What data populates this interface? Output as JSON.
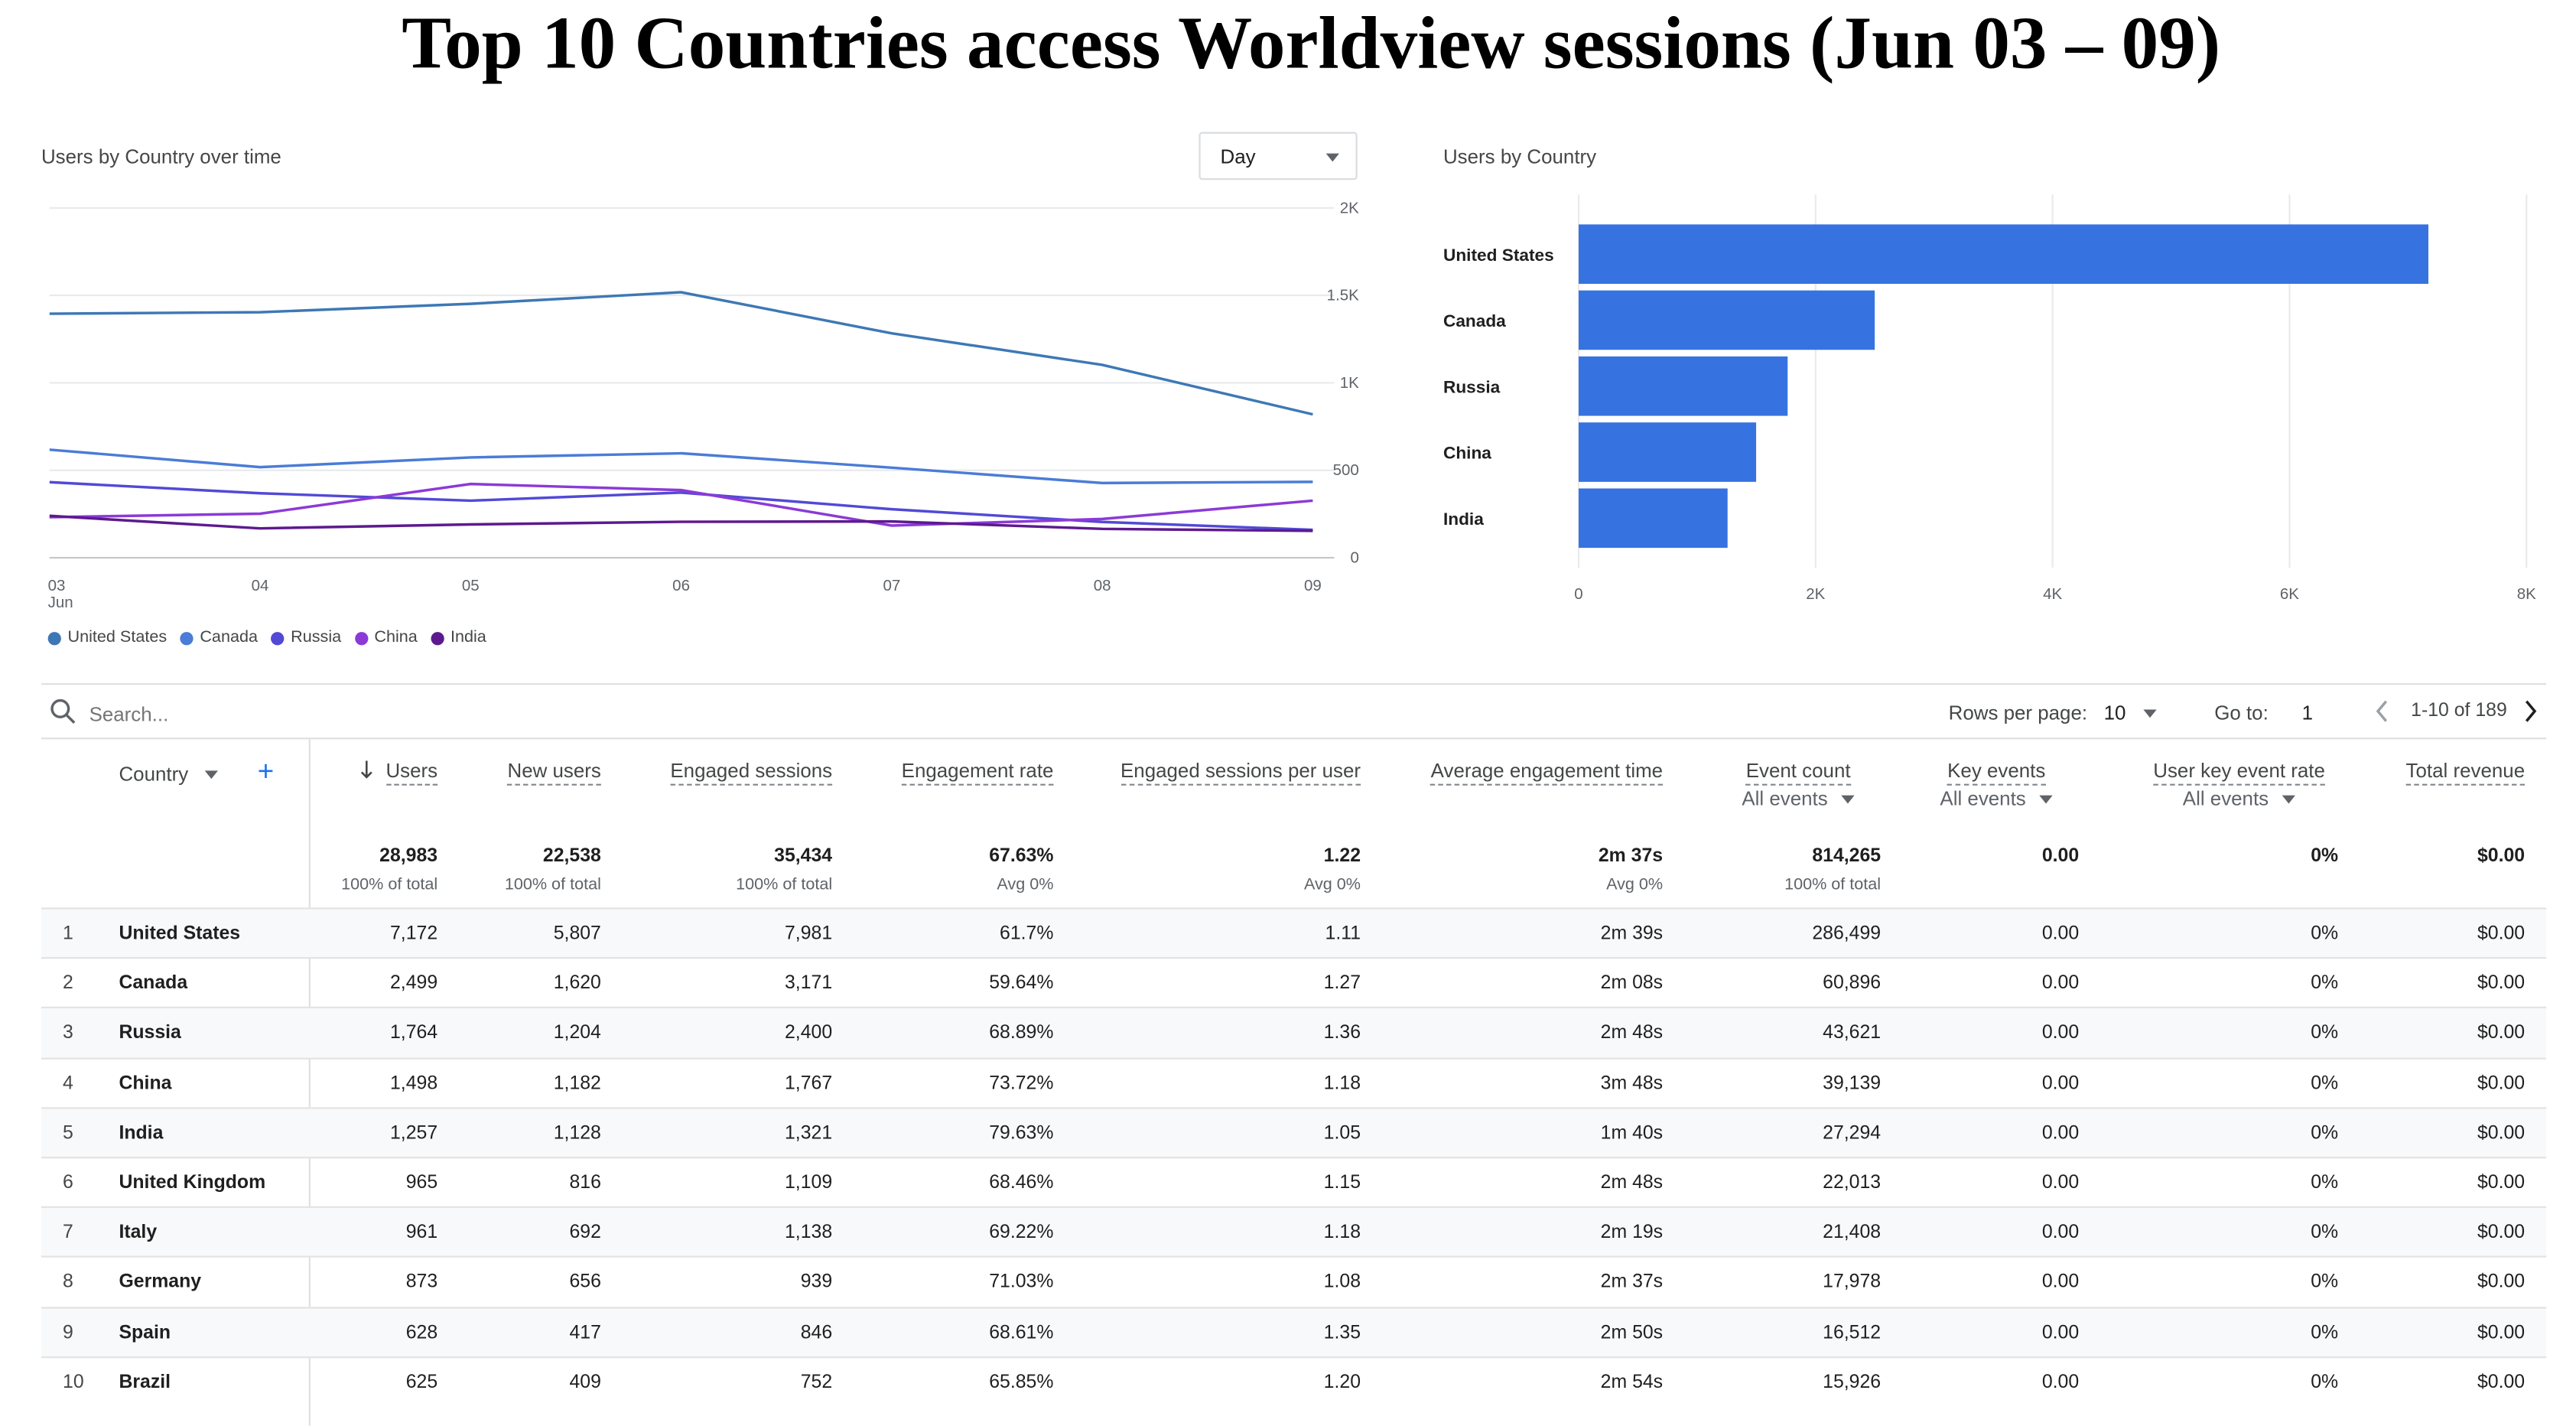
{
  "page_title": "Top 10 Countries access Worldview sessions (Jun 03 – 09)",
  "line_card": {
    "title": "Users by Country over time",
    "granularity": "Day",
    "chart_data": {
      "type": "line",
      "x": [
        "03",
        "04",
        "05",
        "06",
        "07",
        "08",
        "09"
      ],
      "x_sublabel_first": "Jun",
      "y_ticks": [
        "0",
        "500",
        "1K",
        "1.5K",
        "2K"
      ],
      "ylim": [
        0,
        2000
      ],
      "grid": true,
      "legend_position": "bottom-left",
      "series": [
        {
          "name": "United States",
          "color": "#3d78b5",
          "values": [
            1395,
            1404,
            1452,
            1518,
            1283,
            1103,
            820
          ]
        },
        {
          "name": "Canada",
          "color": "#4a7cd8",
          "values": [
            618,
            518,
            574,
            597,
            515,
            427,
            434
          ]
        },
        {
          "name": "Russia",
          "color": "#5249d6",
          "values": [
            432,
            369,
            326,
            373,
            277,
            205,
            159
          ]
        },
        {
          "name": "China",
          "color": "#8b3ad7",
          "values": [
            232,
            252,
            422,
            387,
            184,
            222,
            326
          ]
        },
        {
          "name": "India",
          "color": "#5d1a8e",
          "values": [
            240,
            168,
            191,
            206,
            208,
            165,
            154
          ]
        }
      ]
    }
  },
  "bar_card": {
    "title": "Users by Country",
    "chart_data": {
      "type": "bar",
      "orientation": "horizontal",
      "categories": [
        "United States",
        "Canada",
        "Russia",
        "China",
        "India"
      ],
      "values": [
        7172,
        2499,
        1764,
        1498,
        1257
      ],
      "x_ticks": [
        "0",
        "2K",
        "4K",
        "6K",
        "8K"
      ],
      "xlim": [
        0,
        8000
      ],
      "grid": true,
      "color": "#3673e0"
    }
  },
  "toolbar": {
    "search_placeholder": "Search...",
    "rows_per_page_label": "Rows per page:",
    "rows_per_page_value": "10",
    "goto_label": "Go to:",
    "goto_value": "1",
    "range": "1-10 of 189"
  },
  "table": {
    "dimension_header": "Country",
    "headers": {
      "users": "Users",
      "new_users": "New users",
      "engaged_sessions": "Engaged sessions",
      "engagement_rate": "Engagement rate",
      "sessions_per_user": "Engaged sessions per user",
      "avg_time": "Average engagement time",
      "event_count": "Event count",
      "event_count_sub": "All events",
      "key_events": "Key events",
      "key_events_sub": "All events",
      "user_key_rate": "User key event rate",
      "user_key_rate_sub": "All events",
      "revenue": "Total revenue"
    },
    "totals": {
      "users": "28,983",
      "users_sub": "100% of total",
      "new_users": "22,538",
      "new_users_sub": "100% of total",
      "engaged_sessions": "35,434",
      "engaged_sessions_sub": "100% of total",
      "engagement_rate": "67.63%",
      "engagement_rate_sub": "Avg 0%",
      "sessions_per_user": "1.22",
      "sessions_per_user_sub": "Avg 0%",
      "avg_time": "2m 37s",
      "avg_time_sub": "Avg 0%",
      "event_count": "814,265",
      "event_count_sub": "100% of total",
      "key_events": "0.00",
      "user_key_rate": "0%",
      "revenue": "$0.00"
    },
    "rows": [
      {
        "rank": "1",
        "country": "United States",
        "users": "7,172",
        "new_users": "5,807",
        "engaged_sessions": "7,981",
        "engagement_rate": "61.7%",
        "sessions_per_user": "1.11",
        "avg_time": "2m 39s",
        "event_count": "286,499",
        "key_events": "0.00",
        "user_key_rate": "0%",
        "revenue": "$0.00"
      },
      {
        "rank": "2",
        "country": "Canada",
        "users": "2,499",
        "new_users": "1,620",
        "engaged_sessions": "3,171",
        "engagement_rate": "59.64%",
        "sessions_per_user": "1.27",
        "avg_time": "2m 08s",
        "event_count": "60,896",
        "key_events": "0.00",
        "user_key_rate": "0%",
        "revenue": "$0.00"
      },
      {
        "rank": "3",
        "country": "Russia",
        "users": "1,764",
        "new_users": "1,204",
        "engaged_sessions": "2,400",
        "engagement_rate": "68.89%",
        "sessions_per_user": "1.36",
        "avg_time": "2m 48s",
        "event_count": "43,621",
        "key_events": "0.00",
        "user_key_rate": "0%",
        "revenue": "$0.00"
      },
      {
        "rank": "4",
        "country": "China",
        "users": "1,498",
        "new_users": "1,182",
        "engaged_sessions": "1,767",
        "engagement_rate": "73.72%",
        "sessions_per_user": "1.18",
        "avg_time": "3m 48s",
        "event_count": "39,139",
        "key_events": "0.00",
        "user_key_rate": "0%",
        "revenue": "$0.00"
      },
      {
        "rank": "5",
        "country": "India",
        "users": "1,257",
        "new_users": "1,128",
        "engaged_sessions": "1,321",
        "engagement_rate": "79.63%",
        "sessions_per_user": "1.05",
        "avg_time": "1m 40s",
        "event_count": "27,294",
        "key_events": "0.00",
        "user_key_rate": "0%",
        "revenue": "$0.00"
      },
      {
        "rank": "6",
        "country": "United Kingdom",
        "users": "965",
        "new_users": "816",
        "engaged_sessions": "1,109",
        "engagement_rate": "68.46%",
        "sessions_per_user": "1.15",
        "avg_time": "2m 48s",
        "event_count": "22,013",
        "key_events": "0.00",
        "user_key_rate": "0%",
        "revenue": "$0.00"
      },
      {
        "rank": "7",
        "country": "Italy",
        "users": "961",
        "new_users": "692",
        "engaged_sessions": "1,138",
        "engagement_rate": "69.22%",
        "sessions_per_user": "1.18",
        "avg_time": "2m 19s",
        "event_count": "21,408",
        "key_events": "0.00",
        "user_key_rate": "0%",
        "revenue": "$0.00"
      },
      {
        "rank": "8",
        "country": "Germany",
        "users": "873",
        "new_users": "656",
        "engaged_sessions": "939",
        "engagement_rate": "71.03%",
        "sessions_per_user": "1.08",
        "avg_time": "2m 37s",
        "event_count": "17,978",
        "key_events": "0.00",
        "user_key_rate": "0%",
        "revenue": "$0.00"
      },
      {
        "rank": "9",
        "country": "Spain",
        "users": "628",
        "new_users": "417",
        "engaged_sessions": "846",
        "engagement_rate": "68.61%",
        "sessions_per_user": "1.35",
        "avg_time": "2m 50s",
        "event_count": "16,512",
        "key_events": "0.00",
        "user_key_rate": "0%",
        "revenue": "$0.00"
      },
      {
        "rank": "10",
        "country": "Brazil",
        "users": "625",
        "new_users": "409",
        "engaged_sessions": "752",
        "engagement_rate": "65.85%",
        "sessions_per_user": "1.20",
        "avg_time": "2m 54s",
        "event_count": "15,926",
        "key_events": "0.00",
        "user_key_rate": "0%",
        "revenue": "$0.00"
      }
    ]
  }
}
